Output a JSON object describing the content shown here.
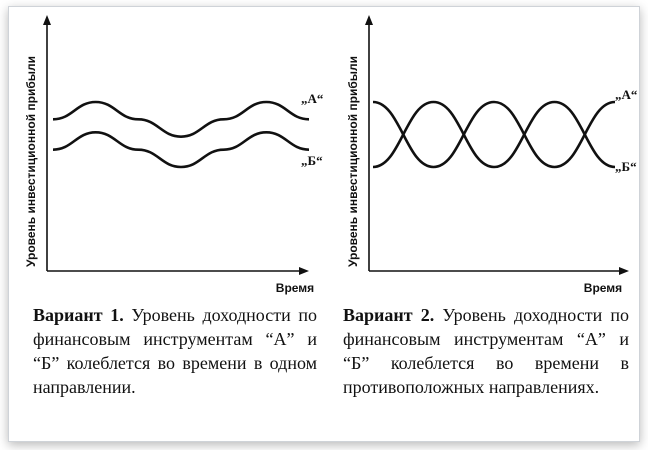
{
  "chart_data": [
    {
      "type": "line",
      "ylabel": "Уровень инвестиционной прибыли",
      "xlabel": "Время",
      "series": [
        {
          "name": "„А“",
          "values": [
            0.55,
            0.75,
            0.55,
            0.35,
            0.55,
            0.75,
            0.55
          ]
        },
        {
          "name": "„Б“",
          "values": [
            0.2,
            0.4,
            0.2,
            0.0,
            0.2,
            0.4,
            0.2
          ]
        }
      ],
      "x": [
        0,
        1,
        2,
        3,
        4,
        5,
        6
      ],
      "grid": false,
      "caption_bold": "Вариант 1.",
      "caption_text": "Уровень доходности по финансовым инструментам “А” и “Б” колеблется во времени в одном направлении."
    },
    {
      "type": "line",
      "ylabel": "Уровень инвестиционной прибыли",
      "xlabel": "Время",
      "series": [
        {
          "name": "„А“",
          "values": [
            0.6,
            0.3,
            0.6,
            0.3,
            0.6
          ]
        },
        {
          "name": "„Б“",
          "values": [
            0.3,
            0.6,
            0.3,
            0.6,
            0.3
          ]
        }
      ],
      "x": [
        0,
        1,
        2,
        3,
        4
      ],
      "grid": false,
      "caption_bold": "Вариант 2.",
      "caption_text": "Уровень доходности по финансовым инструментам “А” и “Б” колеблется во времени в противоположных направлениях."
    }
  ]
}
